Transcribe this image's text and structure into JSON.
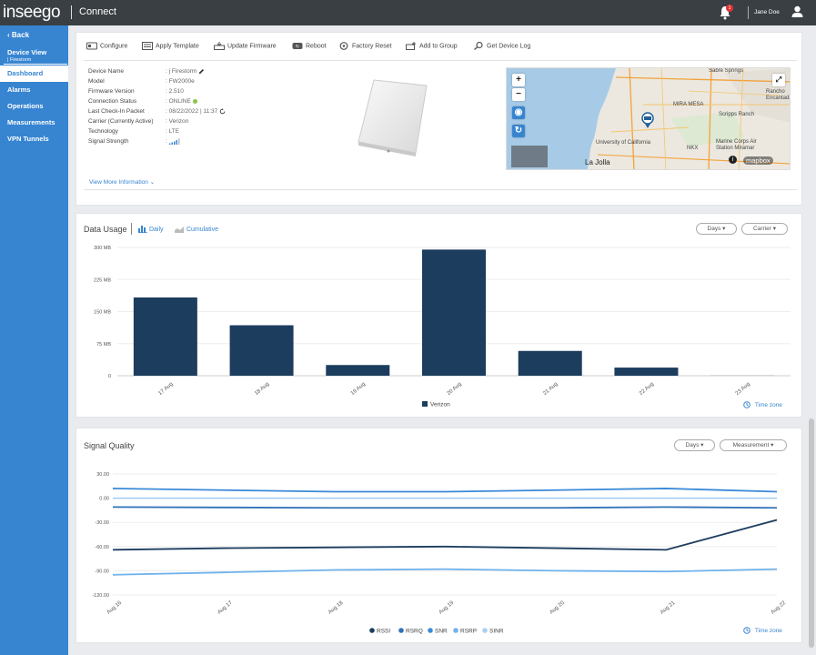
{
  "topbar": {
    "logo": "inseego",
    "app_name": "Connect",
    "notification_count": "1",
    "user_name": "Jane Doe"
  },
  "sidebar": {
    "back_label": "Back",
    "device_view": "Device View",
    "device_sub": "| Firestorm",
    "items": [
      {
        "label": "Dashboard",
        "active": true
      },
      {
        "label": "Alarms"
      },
      {
        "label": "Operations"
      },
      {
        "label": "Measurements"
      },
      {
        "label": "VPN Tunnels"
      }
    ]
  },
  "toolbar": {
    "configure": "Configure",
    "apply_template": "Apply Template",
    "update_firmware": "Update Firmware",
    "reboot": "Reboot",
    "factory_reset": "Factory Reset",
    "add_to_group": "Add to Group",
    "get_device_log": "Get Device Log"
  },
  "device_info": [
    {
      "label": "Device Name",
      "value": ": j Firestorm"
    },
    {
      "label": "Model",
      "value": ": FW2000e"
    },
    {
      "label": "Firmware Version",
      "value": ": 2.510"
    },
    {
      "label": "Connection Status",
      "value": ": ONLINE"
    },
    {
      "label": "Last Check-In Packet",
      "value": ": 08/22/2022 | 11:37"
    },
    {
      "label": "Carrier (Currently Active)",
      "value": ": Verizon"
    },
    {
      "label": "Technology",
      "value": ": LTE"
    },
    {
      "label": "Signal Strength",
      "value": ":"
    }
  ],
  "view_more": "View More Information",
  "map": {
    "labels": [
      "Sabre Springs",
      "Rancho Encantada",
      "MIRA MESA",
      "Scripps Ranch",
      "University of California",
      "Marine Corps Air Station Miramar",
      "NKX",
      "La Jolla",
      "mapbox"
    ],
    "zoom_in": "+",
    "zoom_out": "−"
  },
  "data_usage": {
    "title": "Data Usage",
    "tab_daily": "Daily",
    "tab_cumulative": "Cumulative",
    "days_btn": "Days",
    "carrier_btn": "Carrier",
    "time_zone": "Time zone"
  },
  "signal_quality": {
    "title": "Signal Quality",
    "days_btn": "Days",
    "measurement_btn": "Measurement",
    "time_zone": "Time zone"
  },
  "colors": {
    "accent": "#3785d1",
    "bar": "#1c3d5e",
    "rssi": "#1c3d5e",
    "rsrq": "#2f72b8",
    "snr": "#3a8ad8",
    "rsrp": "#6fb2ec",
    "sinr": "#a8d1f3"
  },
  "chart_data": [
    {
      "type": "bar",
      "title": "Data Usage",
      "categories": [
        "17 Aug",
        "18 Aug",
        "19 Aug",
        "20 Aug",
        "21 Aug",
        "22 Aug",
        "23 Aug"
      ],
      "series": [
        {
          "name": "Verizon",
          "values": [
            183,
            118,
            25,
            295,
            58,
            19,
            0
          ]
        }
      ],
      "y_ticks": [
        "0",
        "75 MB",
        "150 MB",
        "225 MB",
        "300 MB"
      ],
      "ylim": [
        0,
        300
      ],
      "legend": "bottom"
    },
    {
      "type": "line",
      "title": "Signal Quality",
      "categories": [
        "Aug 16",
        "Aug 17",
        "Aug 18",
        "Aug 19",
        "Aug 20",
        "Aug 21",
        "Aug 22"
      ],
      "y_ticks": [
        "30.00",
        "0.00",
        "-30.00",
        "-60.00",
        "-90.00",
        "-120.00"
      ],
      "ylim": [
        -120,
        30
      ],
      "series": [
        {
          "name": "RSSI",
          "values": [
            -64,
            -62,
            -61,
            -60,
            -62,
            -64,
            -27
          ]
        },
        {
          "name": "RSRQ",
          "values": [
            -11,
            -11.5,
            -12,
            -12,
            -12,
            -11,
            -12
          ]
        },
        {
          "name": "SNR",
          "values": [
            12,
            10,
            8,
            8,
            10,
            12,
            8
          ]
        },
        {
          "name": "RSRP",
          "values": [
            -95,
            -92,
            -89,
            -88,
            -90,
            -91,
            -88
          ]
        },
        {
          "name": "SINR",
          "values": [
            0,
            0,
            0,
            0,
            0,
            0,
            0
          ]
        }
      ],
      "legend": "bottom"
    }
  ]
}
